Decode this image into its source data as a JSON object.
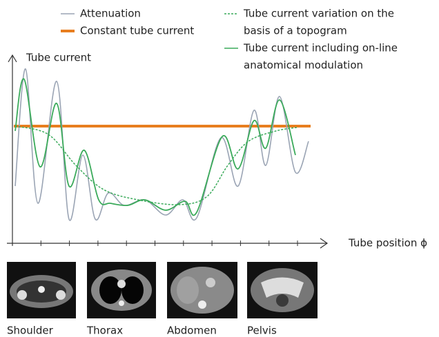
{
  "legend": [
    "Attenuation",
    "Constant tube current",
    [
      "Tube current variation on the",
      "basis of a topogram"
    ],
    [
      "Tube current including on-line",
      "anatomical modulation"
    ]
  ],
  "axes": {
    "y_label": "Tube current",
    "x_label": "Tube position ϕ"
  },
  "images": [
    "Shoulder",
    "Thorax",
    "Abdomen",
    "Pelvis"
  ]
}
